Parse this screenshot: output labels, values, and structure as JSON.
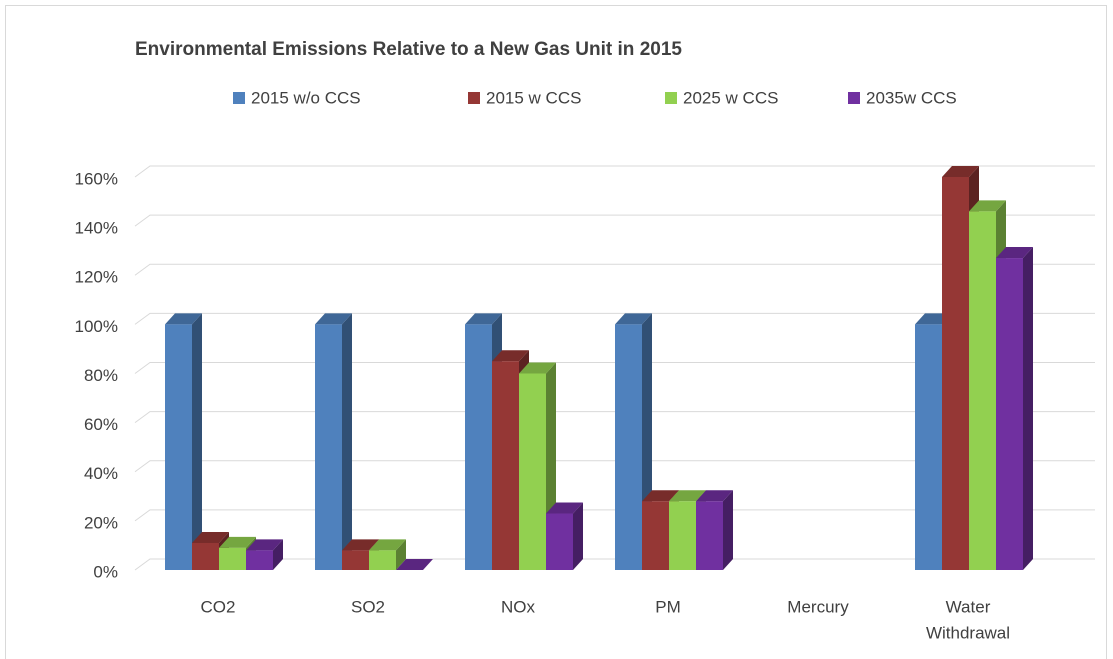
{
  "chart_data": {
    "type": "bar3d",
    "title": "Environmental Emissions Relative to a New Gas Unit in 2015",
    "categories": [
      "CO2",
      "SO2",
      "NOx",
      "PM",
      "Mercury",
      [
        "Water",
        "Withdrawal"
      ]
    ],
    "series": [
      {
        "name": "2015 w/o CCS",
        "color": "#4f81bd",
        "values": [
          100,
          100,
          100,
          100,
          null,
          100
        ]
      },
      {
        "name": "2015 w CCS",
        "color": "#953735",
        "values": [
          11,
          8,
          85,
          28,
          null,
          160
        ]
      },
      {
        "name": "2025 w CCS",
        "color": "#92d050",
        "values": [
          9,
          8,
          80,
          28,
          null,
          146
        ]
      },
      {
        "name": "2035w CCS",
        "color": "#7030a0",
        "values": [
          8,
          0,
          23,
          28,
          null,
          127
        ]
      }
    ],
    "ylim": [
      0,
      160
    ],
    "yticks": [
      {
        "value": 0,
        "label": "0%"
      },
      {
        "value": 20,
        "label": "20%"
      },
      {
        "value": 40,
        "label": "40%"
      },
      {
        "value": 60,
        "label": "60%"
      },
      {
        "value": 80,
        "label": "80%"
      },
      {
        "value": 100,
        "label": "100%"
      },
      {
        "value": 120,
        "label": "120%"
      },
      {
        "value": 140,
        "label": "140%"
      },
      {
        "value": 160,
        "label": "160%"
      }
    ],
    "grid": true
  }
}
